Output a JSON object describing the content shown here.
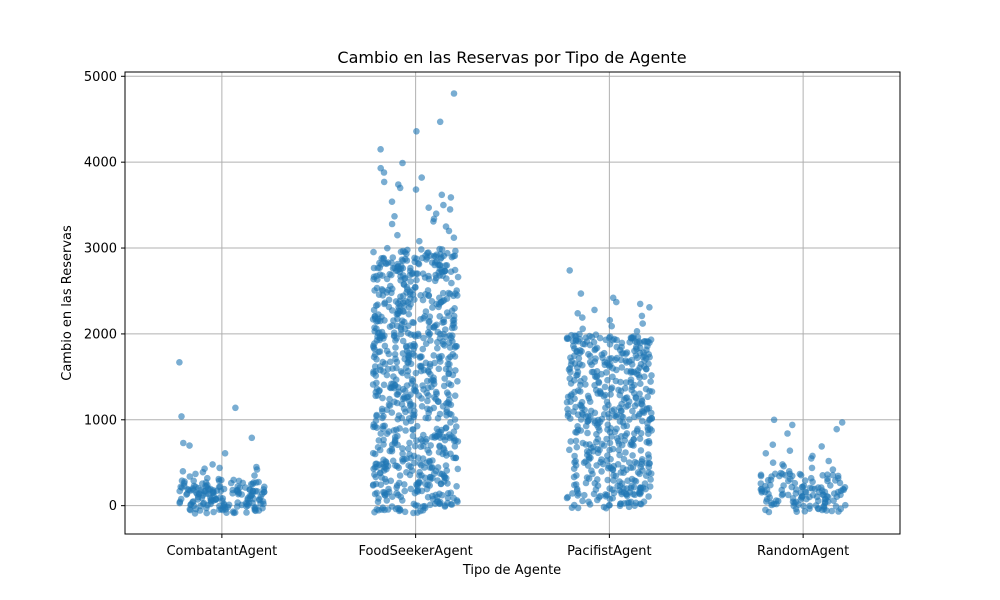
{
  "chart_data": {
    "type": "scatter",
    "title": "Cambio en las Reservas por Tipo de Agente",
    "xlabel": "Tipo de Agente",
    "ylabel": "Cambio en las Reservas",
    "categories": [
      "CombatantAgent",
      "FoodSeekerAgent",
      "PacifistAgent",
      "RandomAgent"
    ],
    "yticks": [
      0,
      1000,
      2000,
      3000,
      4000,
      5000
    ],
    "ylim": [
      -330,
      5050
    ],
    "grid": true,
    "marker_color": "#1f77b4",
    "marker_alpha": 0.6,
    "series": [
      {
        "category": "CombatantAgent",
        "values": [
          1670,
          1140,
          1040,
          790,
          730,
          700,
          610,
          480,
          450,
          440,
          430,
          420,
          400,
          390,
          370,
          350,
          340,
          320,
          310,
          300,
          290,
          280,
          270,
          260,
          250,
          240,
          230,
          220,
          210,
          200,
          190,
          180,
          170,
          160,
          150,
          140,
          130,
          120,
          110,
          100,
          90,
          80,
          70,
          60,
          50,
          40,
          30,
          20,
          10,
          0,
          -10,
          -20,
          -30,
          -40,
          -50,
          -60,
          -70,
          -80,
          -90
        ]
      },
      {
        "category": "FoodSeekerAgent",
        "values": [
          4800,
          4470,
          4360,
          4150,
          3990,
          3930,
          3880,
          3820,
          3770,
          3740,
          3700,
          3680,
          3620,
          3590,
          3540,
          3500,
          3470,
          3450,
          3400,
          3370,
          3340,
          3310,
          3280,
          3250,
          3200,
          3150,
          3120,
          3080
        ]
      },
      {
        "category": "PacifistAgent",
        "values": [
          2740,
          2470,
          2420,
          2370,
          2350,
          2310,
          2280,
          2240,
          2210,
          2190,
          2160,
          2120,
          2090,
          2060,
          2030
        ]
      },
      {
        "category": "RandomAgent",
        "values": [
          1000,
          970,
          940,
          890,
          840,
          710,
          690,
          640,
          610,
          580,
          550,
          520,
          500,
          480,
          460,
          440,
          420,
          400,
          380,
          360,
          340,
          320,
          300
        ]
      }
    ],
    "dense_bands": [
      {
        "category": "CombatantAgent",
        "low": -90,
        "high": 300
      },
      {
        "category": "FoodSeekerAgent",
        "low": -90,
        "high": 3000
      },
      {
        "category": "PacifistAgent",
        "low": -30,
        "high": 2000
      },
      {
        "category": "RandomAgent",
        "low": -80,
        "high": 380
      }
    ]
  }
}
